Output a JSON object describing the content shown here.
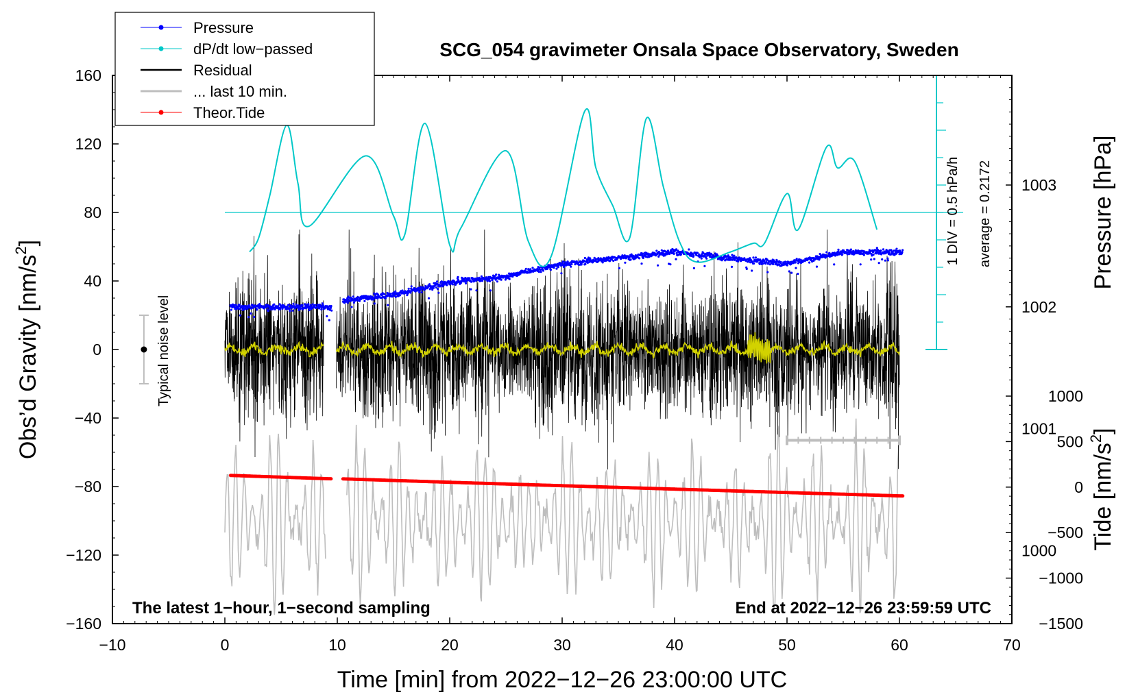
{
  "chart_data": {
    "type": "line",
    "title": "SCG_054 gravimeter Onsala Space Observatory, Sweden",
    "xlabel": "Time [min] from 2022−12−26 23:00:00 UTC",
    "ylabel": "Obs’d Gravity [nm/s²]",
    "ylabel_main": "Obs’d Gravity [nm/s",
    "ylabel_sup": "2",
    "ylabel_end": "]",
    "xlim": [
      -10,
      70
    ],
    "ylim": [
      -160,
      160
    ],
    "x_ticks": [
      "−10",
      "0",
      "10",
      "20",
      "30",
      "40",
      "50",
      "60",
      "70"
    ],
    "y_ticks": [
      "−160",
      "−120",
      "−80",
      "−40",
      "0",
      "40",
      "80",
      "120",
      "160"
    ],
    "pressure_axis": {
      "label": "Pressure [hPa]",
      "ticks": [
        "1000",
        "1001",
        "1002",
        "1003"
      ],
      "range": [
        999.4,
        1003.9
      ]
    },
    "tide_axis": {
      "label_main": "Tide [nm/s",
      "label_sup": "2",
      "label_end": "]",
      "ticks": [
        "−1500",
        "−1000",
        "−500",
        "0",
        "500",
        "1000"
      ],
      "range": [
        -1500,
        1000
      ]
    },
    "dpdt_scale": {
      "div_label": "1 DIV = 0.5 hPa/h",
      "average_label": "average = 0.2172"
    },
    "noise_label": "Typical noise level",
    "noise_half_range": 20,
    "bottom_left_note": "The latest 1−hour, 1−second sampling",
    "bottom_right_note": "End at 2022−12−26 23:59:59 UTC",
    "legend": [
      {
        "label": "Pressure",
        "color": "#0000ff",
        "marker": true
      },
      {
        "label": "dP/dt low−passed",
        "color": "#00c8c8",
        "marker": true
      },
      {
        "label": "Residual",
        "color": "#000000",
        "marker": false
      },
      {
        "label": "... last 10 min.",
        "color": "#bebebe",
        "marker": false
      },
      {
        "label": "Theor.Tide",
        "color": "#ff0000",
        "marker": true
      }
    ],
    "series": [
      {
        "name": "Pressure",
        "unit": "hPa",
        "x": [
          0.5,
          5,
          9.5,
          10.5,
          15,
          20,
          25,
          30,
          35,
          40,
          45,
          50,
          55,
          60.3
        ],
        "values": [
          1002.0,
          1002.0,
          1002.0,
          1002.05,
          1002.1,
          1002.2,
          1002.25,
          1002.35,
          1002.4,
          1002.45,
          1002.4,
          1002.35,
          1002.45,
          1002.45
        ],
        "gap": [
          9.5,
          10.5
        ]
      },
      {
        "name": "dP/dt low−passed",
        "unit": "nm/s² plot units",
        "x": [
          2.2,
          3,
          4,
          5.5,
          6.5,
          7.5,
          12.5,
          15,
          16,
          17.8,
          20,
          21,
          25,
          27,
          29,
          32,
          33,
          34.5,
          36,
          37.5,
          39,
          40.5,
          42,
          45,
          47,
          48,
          50,
          51,
          53.5,
          54.5,
          56,
          58
        ],
        "values": [
          57,
          65,
          90,
          131,
          97,
          72,
          113,
          78,
          67,
          132,
          61,
          71,
          116,
          63,
          54,
          139,
          106,
          84,
          65,
          135,
          95,
          62,
          51,
          57,
          62,
          62,
          91,
          70,
          118,
          106,
          110,
          70
        ]
      },
      {
        "name": "Residual",
        "unit": "nm/s²",
        "x_range": [
          0,
          60
        ],
        "gap": [
          8.8,
          9.9
        ],
        "amplitude": 30
      },
      {
        "name": "... last 10 min.",
        "unit": "nm/s² (overlay)",
        "x_range": [
          0,
          60
        ],
        "center": -100
      },
      {
        "name": "Theor.Tide",
        "unit": "nm/s²",
        "x": [
          0.5,
          9.5,
          10.5,
          20,
          30,
          40,
          50,
          60.3
        ],
        "values": [
          -73.5,
          -75.5,
          -75.5,
          -77.5,
          -79.5,
          -81.5,
          -83.5,
          -85.5
        ],
        "gap": [
          9.5,
          10.5
        ]
      }
    ],
    "last_10min_bar": {
      "x": [
        50,
        60
      ],
      "y": -53
    }
  }
}
